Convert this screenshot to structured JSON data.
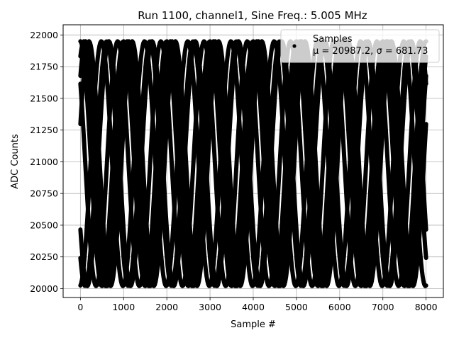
{
  "chart_data": {
    "type": "scatter",
    "title": "Run 1100, channel1, Sine Freq.: 5.005 MHz",
    "xlabel": "Sample #",
    "ylabel": "ADC Counts",
    "xlim": [
      -400,
      8400
    ],
    "ylim": [
      19930,
      22080
    ],
    "xticks": [
      0,
      1000,
      2000,
      3000,
      4000,
      5000,
      6000,
      7000,
      8000
    ],
    "yticks": [
      20000,
      20250,
      20500,
      20750,
      21000,
      21250,
      21500,
      21750,
      22000
    ],
    "grid": true,
    "legend": {
      "placement": "top-right",
      "title": "Samples",
      "text": "μ = 20987.2, σ = 681.73"
    },
    "series": [
      {
        "name": "Samples",
        "color": "#000000",
        "marker": "dot",
        "model": "sine",
        "amplitude": 965,
        "offset": 20985,
        "period_samples": 1000,
        "phase_offsets": [
          0.33,
          2.43,
          1.07,
          3.71,
          4.81,
          4.02,
          0.8,
          1.6
        ],
        "x_start": 0,
        "x_end": 8000,
        "start_values": [
          21940,
          21730,
          21585,
          21085,
          20895,
          20375,
          20240,
          20020
        ]
      }
    ],
    "fade_band": {
      "x_from": 4950,
      "x_to": 7900,
      "y_from": 21740,
      "y_to": 21960,
      "color": "#c8c8c8"
    }
  }
}
